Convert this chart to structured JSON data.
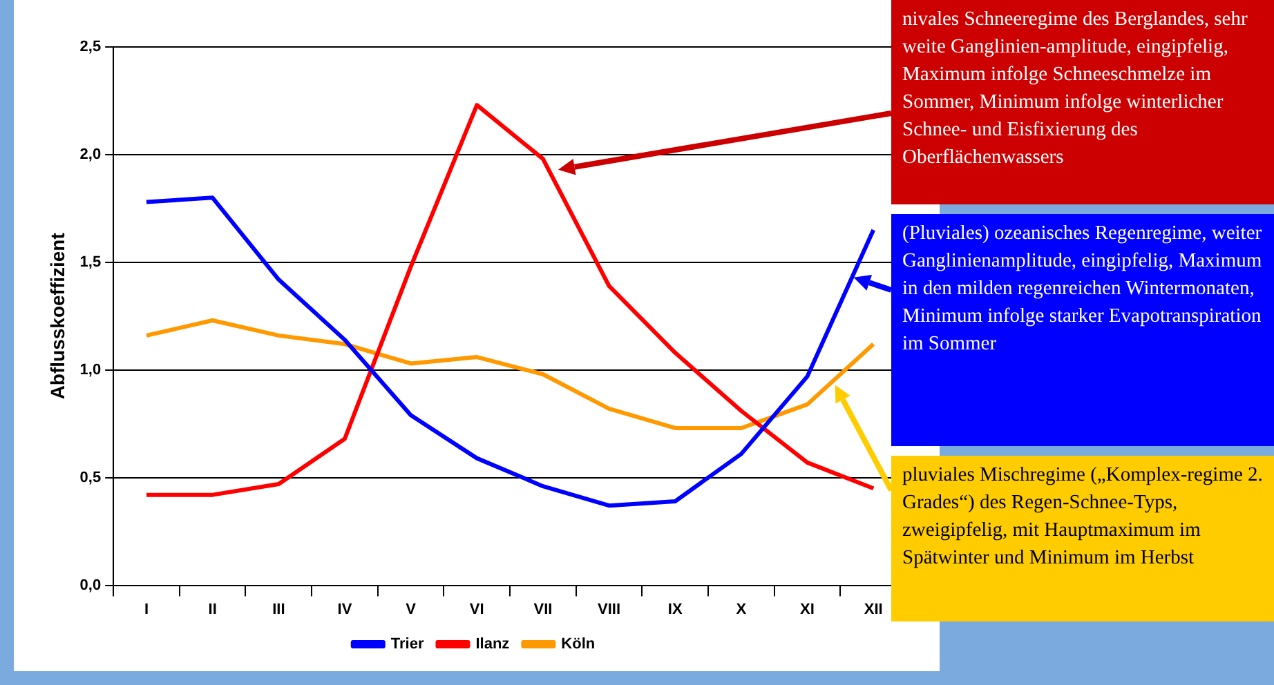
{
  "chart_data": {
    "type": "line",
    "ylabel": "Abflusskoeffizient",
    "categories": [
      "I",
      "II",
      "III",
      "IV",
      "V",
      "VI",
      "VII",
      "VIII",
      "IX",
      "X",
      "XI",
      "XII"
    ],
    "series": [
      {
        "name": "Trier",
        "color": "#0000ff",
        "values": [
          1.78,
          1.8,
          1.42,
          1.14,
          0.79,
          0.59,
          0.46,
          0.37,
          0.39,
          0.61,
          0.97,
          1.65
        ]
      },
      {
        "name": "Ilanz",
        "color": "#ff0000",
        "values": [
          0.42,
          0.42,
          0.47,
          0.68,
          1.48,
          2.23,
          1.98,
          1.39,
          1.08,
          0.81,
          0.57,
          0.45
        ]
      },
      {
        "name": "Köln",
        "color": "#ff9900",
        "values": [
          1.16,
          1.23,
          1.16,
          1.12,
          1.03,
          1.06,
          0.98,
          0.82,
          0.73,
          0.73,
          0.84,
          1.12
        ]
      }
    ],
    "ylim": [
      0,
      2.5
    ],
    "yticks": [
      {
        "value": 0,
        "label": "0,0"
      },
      {
        "value": 0.5,
        "label": "0,5"
      },
      {
        "value": 1,
        "label": "1,0"
      },
      {
        "value": 1.5,
        "label": "1,5"
      },
      {
        "value": 2,
        "label": "2,0"
      },
      {
        "value": 2.5,
        "label": "2,5"
      }
    ],
    "grid": "y",
    "legend": "bottom",
    "marker": "none",
    "line_style": "solid",
    "annotations": [
      "nivales Schneeregime des Berglandes, sehr weite Ganglinien-amplitude, eingipfelig, Maximum infolge Schneeschmelze im Sommer, Minimum infolge winterlicher Schnee- und Eisfixierung des Oberflächenwassers",
      "(Pluviales) ozeanisches Regenregime, weiter Ganglinienamplitude, eingipfelig, Maximum in den milden regenreichen Wintermonaten, Minimum infolge starker Evapotranspiration im Sommer",
      "pluviales Mischregime („Komplex-regime 2. Grades“) des Regen-Schnee-Typs,  zweigipfelig, mit Hauptmaximum im Spätwinter und Minimum im Herbst"
    ]
  }
}
